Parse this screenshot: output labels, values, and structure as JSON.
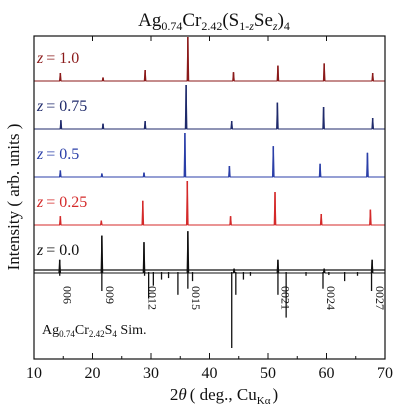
{
  "chart_data": {
    "type": "line",
    "title": "Ag0.74Cr2.42(S1-zSez)4",
    "title_parts": {
      "ag": "Ag",
      "ag_sub": "0.74",
      "cr": "Cr",
      "cr_sub": "2.42",
      "open": "(S",
      "s_sub_prefix": "1-",
      "s_sub_var": "z",
      "se": "Se",
      "se_sub": "z",
      "close": ")",
      "close_sub": "4"
    },
    "xlabel": "2θ ( deg., Cu Kα )",
    "xlabel_parts": {
      "theta_prefix": "2",
      "theta": "θ",
      "rest": "( deg., Cu",
      "ka_sub": "Kα",
      "end": ")"
    },
    "ylabel": "Intensity ( arb. units )",
    "xlim": [
      10,
      70
    ],
    "xticks": [
      10,
      20,
      30,
      40,
      50,
      60,
      70
    ],
    "grid": false,
    "series": [
      {
        "name": "z = 1.0",
        "label_var": "z",
        "label_value": "= 1.0",
        "color": "#8b1a1a",
        "peaks": [
          {
            "x": 14.5,
            "h": 0.18
          },
          {
            "x": 21.8,
            "h": 0.08
          },
          {
            "x": 29.0,
            "h": 0.25
          },
          {
            "x": 36.3,
            "h": 1.0
          },
          {
            "x": 44.1,
            "h": 0.2
          },
          {
            "x": 51.7,
            "h": 0.35
          },
          {
            "x": 59.6,
            "h": 0.4
          },
          {
            "x": 67.9,
            "h": 0.18
          }
        ]
      },
      {
        "name": "z = 0.75",
        "label_var": "z",
        "label_value": "= 0.75",
        "color": "#1f2a6b",
        "peaks": [
          {
            "x": 14.6,
            "h": 0.2
          },
          {
            "x": 21.8,
            "h": 0.12
          },
          {
            "x": 29.0,
            "h": 0.18
          },
          {
            "x": 36.0,
            "h": 1.0
          },
          {
            "x": 43.8,
            "h": 0.18
          },
          {
            "x": 51.6,
            "h": 0.6
          },
          {
            "x": 59.5,
            "h": 0.5
          },
          {
            "x": 67.9,
            "h": 0.25
          }
        ]
      },
      {
        "name": "z = 0.5",
        "label_var": "z",
        "label_value": "= 0.5",
        "color": "#2b3fa8",
        "peaks": [
          {
            "x": 14.5,
            "h": 0.15
          },
          {
            "x": 21.6,
            "h": 0.08
          },
          {
            "x": 28.8,
            "h": 0.1
          },
          {
            "x": 35.8,
            "h": 1.0
          },
          {
            "x": 43.4,
            "h": 0.25
          },
          {
            "x": 50.9,
            "h": 0.7
          },
          {
            "x": 58.9,
            "h": 0.3
          },
          {
            "x": 67.0,
            "h": 0.55
          }
        ]
      },
      {
        "name": "z = 0.25",
        "label_var": "z",
        "label_value": "= 0.25",
        "color": "#d42a2a",
        "peaks": [
          {
            "x": 14.5,
            "h": 0.2
          },
          {
            "x": 21.5,
            "h": 0.1
          },
          {
            "x": 28.6,
            "h": 0.55
          },
          {
            "x": 36.2,
            "h": 1.0
          },
          {
            "x": 43.6,
            "h": 0.2
          },
          {
            "x": 51.2,
            "h": 0.75
          },
          {
            "x": 59.1,
            "h": 0.25
          },
          {
            "x": 67.5,
            "h": 0.35
          }
        ]
      },
      {
        "name": "z = 0.0",
        "label_var": "z",
        "label_value": "= 0.0",
        "color": "#111111",
        "peaks": [
          {
            "x": 14.4,
            "h": 0.3
          },
          {
            "x": 21.6,
            "h": 0.85
          },
          {
            "x": 28.8,
            "h": 0.7
          },
          {
            "x": 36.3,
            "h": 0.95
          },
          {
            "x": 44.2,
            "h": 0.1
          },
          {
            "x": 51.7,
            "h": 0.3
          },
          {
            "x": 59.6,
            "h": 0.1
          },
          {
            "x": 67.8,
            "h": 0.3
          }
        ]
      }
    ],
    "simulation": {
      "name": "Ag0.74Cr2.42S4 Sim.",
      "label_parts": {
        "ag": "Ag",
        "ag_sub": "0.74",
        "cr": "Cr",
        "cr_sub": "2.42",
        "s": "S",
        "s_sub": "4",
        "end": " Sim."
      },
      "color": "#111111",
      "peaks": [
        {
          "x": 14.4,
          "h": 0.05
        },
        {
          "x": 21.6,
          "h": 0.25
        },
        {
          "x": 28.9,
          "h": 0.05
        },
        {
          "x": 29.6,
          "h": 0.35
        },
        {
          "x": 30.4,
          "h": 0.18
        },
        {
          "x": 31.8,
          "h": 0.1
        },
        {
          "x": 33.0,
          "h": 0.08
        },
        {
          "x": 34.6,
          "h": 0.3
        },
        {
          "x": 36.3,
          "h": 0.22
        },
        {
          "x": 37.1,
          "h": 0.12
        },
        {
          "x": 43.8,
          "h": 1.0
        },
        {
          "x": 44.5,
          "h": 0.3
        },
        {
          "x": 45.8,
          "h": 0.1
        },
        {
          "x": 47.0,
          "h": 0.05
        },
        {
          "x": 51.7,
          "h": 0.3
        },
        {
          "x": 53.1,
          "h": 0.6
        },
        {
          "x": 56.5,
          "h": 0.05
        },
        {
          "x": 59.4,
          "h": 0.22
        },
        {
          "x": 60.4,
          "h": 0.04
        },
        {
          "x": 63.1,
          "h": 0.12
        },
        {
          "x": 65.3,
          "h": 0.05
        },
        {
          "x": 67.7,
          "h": 0.25
        }
      ],
      "annotations": [
        {
          "x": 14.4,
          "label": "006"
        },
        {
          "x": 21.6,
          "label": "009"
        },
        {
          "x": 28.9,
          "label": "0012"
        },
        {
          "x": 36.3,
          "label": "0015"
        },
        {
          "x": 51.6,
          "label": "0021"
        },
        {
          "x": 59.4,
          "label": "0024"
        },
        {
          "x": 67.8,
          "label": "0027"
        }
      ]
    }
  }
}
